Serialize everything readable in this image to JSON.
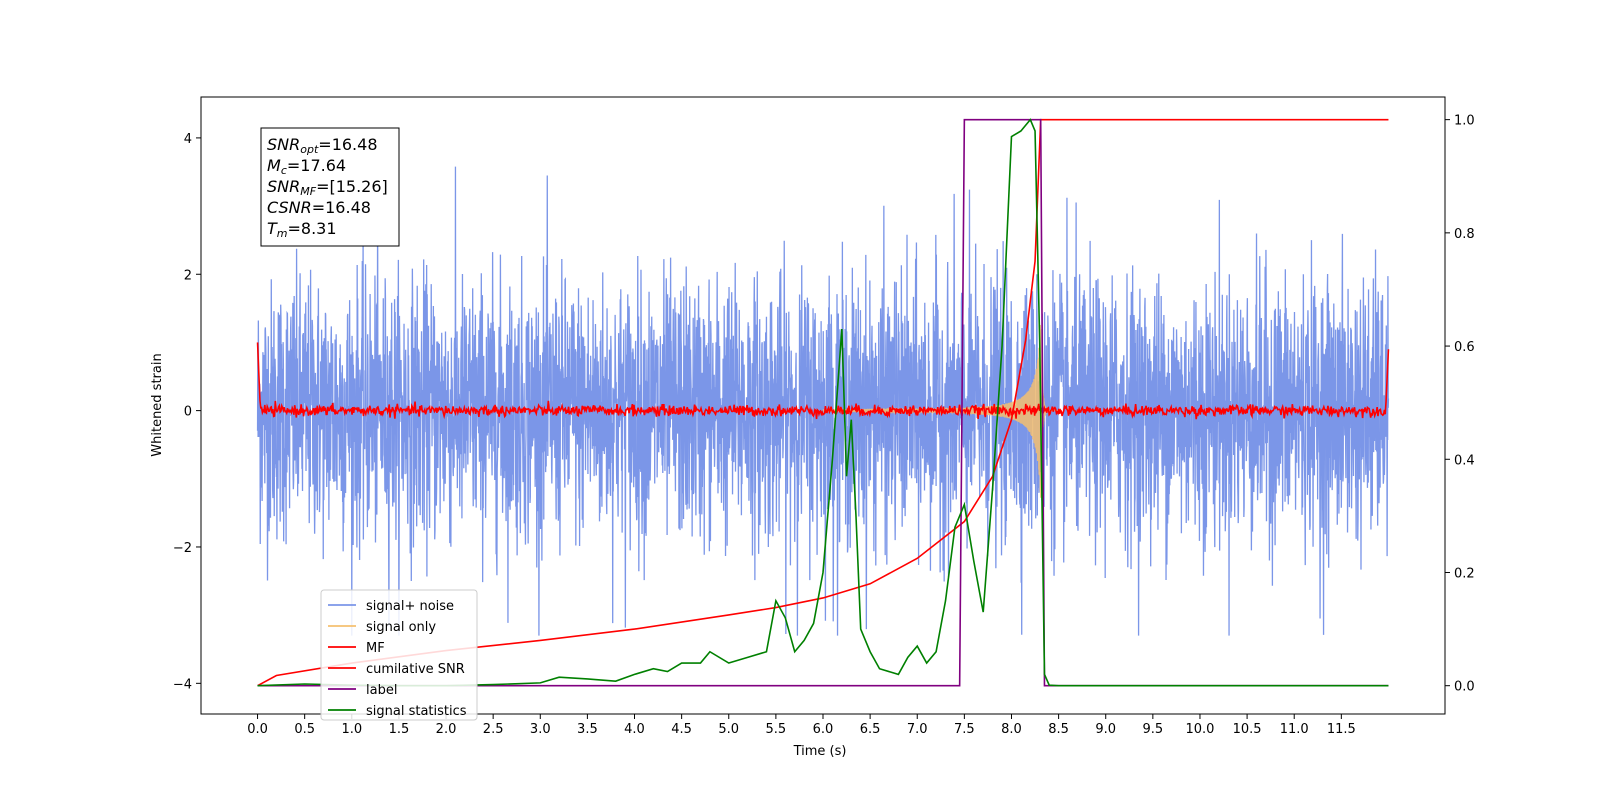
{
  "chart_data": {
    "type": "line",
    "title": "",
    "xlabel": "Time (s)",
    "ylabel": "Whitened strain",
    "xlim": [
      -0.6,
      12.6
    ],
    "ylim": [
      -4.45,
      4.6
    ],
    "y2lim": [
      -0.05,
      1.04
    ],
    "xticks": [
      "0.0",
      "0.5",
      "1.0",
      "1.5",
      "2.0",
      "2.5",
      "3.0",
      "3.5",
      "4.0",
      "4.5",
      "5.0",
      "5.5",
      "6.0",
      "6.5",
      "7.0",
      "7.5",
      "8.0",
      "8.5",
      "9.0",
      "9.5",
      "10.0",
      "10.5",
      "11.0",
      "11.5"
    ],
    "yticks": [
      "−4",
      "−2",
      "0",
      "2",
      "4"
    ],
    "y2ticks": [
      "0.0",
      "0.2",
      "0.4",
      "0.6",
      "0.8",
      "1.0"
    ],
    "legend_position": "lower-left",
    "annotation": {
      "snr_opt": {
        "base": "SNR",
        "sub": "opt",
        "value": "=16.48"
      },
      "mc": {
        "base": "M",
        "sub": "c",
        "value": "=17.64"
      },
      "snr_mf": {
        "base": "SNR",
        "sub": "MF",
        "value": "=[15.26]"
      },
      "csnr": {
        "base": "CSNR",
        "sub": "",
        "value": "=16.48"
      },
      "tm": {
        "base": "T",
        "sub": "m",
        "value": "=8.31"
      }
    },
    "series": [
      {
        "name": "signal+ noise",
        "color": "#7b96e8",
        "axis": "left",
        "description_range": [
          -3.3,
          4.15
        ],
        "x_range": [
          0,
          12.0
        ]
      },
      {
        "name": "signal only",
        "color": "#f5c070",
        "axis": "left",
        "chirp_peak_time": 8.31,
        "amplitude_max": 1.35
      },
      {
        "name": "MF",
        "color": "#ff0000",
        "axis": "left",
        "x": [
          0,
          0.02,
          0.05,
          12.0
        ],
        "y": [
          1.0,
          0.0,
          0.0,
          0.9
        ]
      },
      {
        "name": "cumilative SNR",
        "color": "#ff0000",
        "axis": "right",
        "x": [
          0,
          0.2,
          1.0,
          2.0,
          3.0,
          4.0,
          5.0,
          5.5,
          6.0,
          6.5,
          7.0,
          7.5,
          7.8,
          8.0,
          8.15,
          8.25,
          8.31,
          8.35,
          12.0
        ],
        "y": [
          0.0,
          0.018,
          0.04,
          0.062,
          0.08,
          0.1,
          0.125,
          0.138,
          0.155,
          0.18,
          0.225,
          0.29,
          0.37,
          0.47,
          0.61,
          0.75,
          1.0,
          1.0,
          1.0
        ]
      },
      {
        "name": "label",
        "color": "#800080",
        "axis": "right",
        "x": [
          0,
          7.45,
          7.5,
          8.31,
          8.35,
          12.0
        ],
        "y": [
          0.0,
          0.0,
          1.0,
          1.0,
          0.0,
          0.0
        ]
      },
      {
        "name": "signal statistics",
        "color": "#008000",
        "axis": "right",
        "x": [
          0,
          0.5,
          1.0,
          1.5,
          2.0,
          2.5,
          3.0,
          3.2,
          3.5,
          3.8,
          4.0,
          4.2,
          4.35,
          4.5,
          4.7,
          4.8,
          5.0,
          5.2,
          5.4,
          5.5,
          5.6,
          5.7,
          5.8,
          5.9,
          6.0,
          6.1,
          6.2,
          6.25,
          6.3,
          6.35,
          6.4,
          6.5,
          6.6,
          6.8,
          6.9,
          7.0,
          7.1,
          7.2,
          7.3,
          7.4,
          7.5,
          7.6,
          7.7,
          7.8,
          7.9,
          8.0,
          8.1,
          8.2,
          8.25,
          8.3,
          8.35,
          8.4,
          8.5,
          12.0
        ],
        "y": [
          0.0,
          0.003,
          0.001,
          0.0,
          0.0,
          0.002,
          0.005,
          0.015,
          0.012,
          0.008,
          0.02,
          0.03,
          0.025,
          0.04,
          0.04,
          0.06,
          0.04,
          0.05,
          0.06,
          0.15,
          0.12,
          0.06,
          0.08,
          0.11,
          0.2,
          0.4,
          0.63,
          0.37,
          0.47,
          0.3,
          0.1,
          0.06,
          0.03,
          0.02,
          0.05,
          0.07,
          0.04,
          0.06,
          0.15,
          0.28,
          0.32,
          0.22,
          0.13,
          0.35,
          0.6,
          0.97,
          0.98,
          1.0,
          0.98,
          0.6,
          0.02,
          0.001,
          0.0,
          0.0
        ]
      }
    ]
  }
}
